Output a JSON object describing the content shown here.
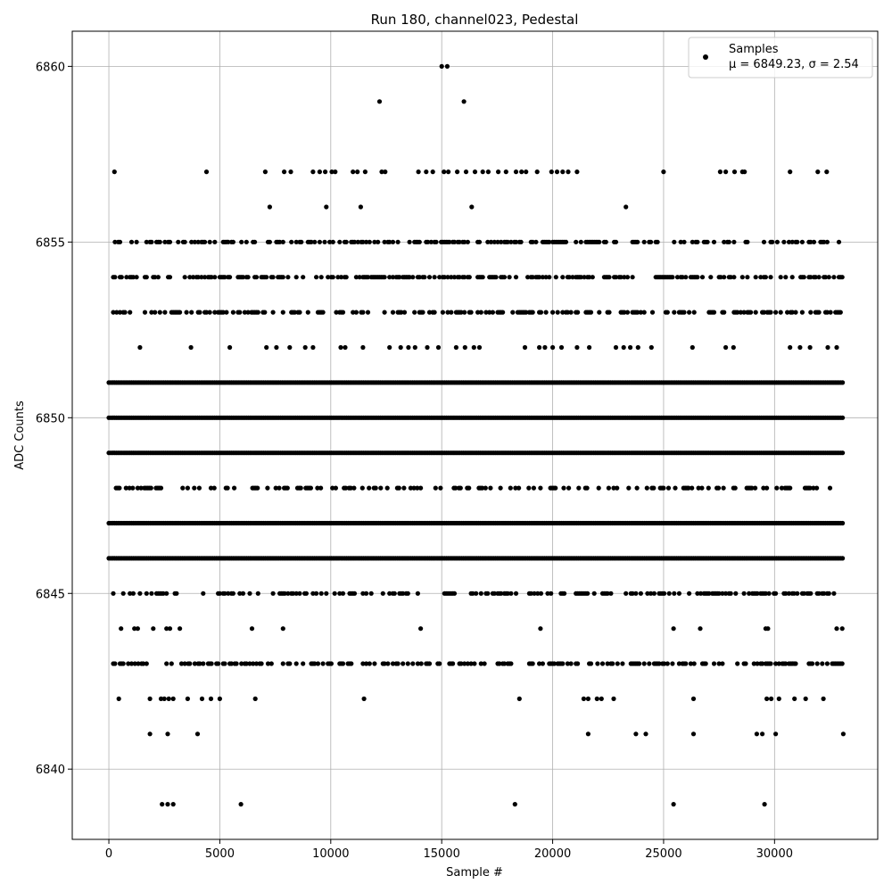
{
  "chart_data": {
    "type": "scatter",
    "title": "Run 180, channel023, Pedestal",
    "xlabel": "Sample #",
    "ylabel": "ADC Counts",
    "xlim": [
      -1650,
      34650
    ],
    "ylim": [
      6838,
      6861
    ],
    "x_ticks": [
      0,
      5000,
      10000,
      15000,
      20000,
      25000,
      30000
    ],
    "x_tick_labels": [
      "0",
      "5000",
      "10000",
      "15000",
      "20000",
      "25000",
      "30000"
    ],
    "y_ticks": [
      6840,
      6845,
      6850,
      6855,
      6860
    ],
    "y_tick_labels": [
      "6840",
      "6845",
      "6850",
      "6855",
      "6860"
    ],
    "grid": true,
    "legend": {
      "placement": "top-right",
      "entries": [
        "Samples",
        "μ = 6849.23, σ = 2.54"
      ]
    },
    "series": [
      {
        "name": "Samples",
        "color": "#000000",
        "marker": "circle",
        "x_range": [
          0,
          33100
        ],
        "dense_levels": [
          6851,
          6850,
          6849,
          6847,
          6846
        ],
        "medium_levels": [
          6855,
          6854,
          6853,
          6845,
          6843
        ],
        "sparse_levels": [
          6848
        ],
        "sparse_points": [
          [
            15000,
            6860
          ],
          [
            15250,
            6860
          ],
          [
            12200,
            6859
          ],
          [
            16000,
            6859
          ],
          [
            250,
            6857
          ],
          [
            4400,
            6857
          ],
          [
            7050,
            6857
          ],
          [
            7900,
            6857
          ],
          [
            8200,
            6857
          ],
          [
            9200,
            6857
          ],
          [
            9500,
            6857
          ],
          [
            9750,
            6857
          ],
          [
            10050,
            6857
          ],
          [
            10200,
            6857
          ],
          [
            11000,
            6857
          ],
          [
            11200,
            6857
          ],
          [
            11550,
            6857
          ],
          [
            12300,
            6857
          ],
          [
            12450,
            6857
          ],
          [
            13950,
            6857
          ],
          [
            14300,
            6857
          ],
          [
            14600,
            6857
          ],
          [
            15100,
            6857
          ],
          [
            15300,
            6857
          ],
          [
            15700,
            6857
          ],
          [
            16100,
            6857
          ],
          [
            16500,
            6857
          ],
          [
            16850,
            6857
          ],
          [
            17100,
            6857
          ],
          [
            17550,
            6857
          ],
          [
            17900,
            6857
          ],
          [
            18350,
            6857
          ],
          [
            18600,
            6857
          ],
          [
            18800,
            6857
          ],
          [
            19300,
            6857
          ],
          [
            19950,
            6857
          ],
          [
            20200,
            6857
          ],
          [
            20450,
            6857
          ],
          [
            20700,
            6857
          ],
          [
            21100,
            6857
          ],
          [
            25000,
            6857
          ],
          [
            27550,
            6857
          ],
          [
            27800,
            6857
          ],
          [
            28200,
            6857
          ],
          [
            28550,
            6857
          ],
          [
            28650,
            6857
          ],
          [
            30700,
            6857
          ],
          [
            31950,
            6857
          ],
          [
            32350,
            6857
          ],
          [
            7250,
            6856
          ],
          [
            9800,
            6856
          ],
          [
            11350,
            6856
          ],
          [
            16350,
            6856
          ],
          [
            23300,
            6856
          ],
          [
            1400,
            6852
          ],
          [
            3700,
            6852
          ],
          [
            5450,
            6852
          ],
          [
            7100,
            6852
          ],
          [
            7550,
            6852
          ],
          [
            8150,
            6852
          ],
          [
            8850,
            6852
          ],
          [
            9200,
            6852
          ],
          [
            10450,
            6852
          ],
          [
            10650,
            6852
          ],
          [
            11450,
            6852
          ],
          [
            12650,
            6852
          ],
          [
            13150,
            6852
          ],
          [
            13500,
            6852
          ],
          [
            13800,
            6852
          ],
          [
            14350,
            6852
          ],
          [
            14850,
            6852
          ],
          [
            15650,
            6852
          ],
          [
            16050,
            6852
          ],
          [
            16450,
            6852
          ],
          [
            16700,
            6852
          ],
          [
            18750,
            6852
          ],
          [
            19400,
            6852
          ],
          [
            19650,
            6852
          ],
          [
            20000,
            6852
          ],
          [
            20400,
            6852
          ],
          [
            21100,
            6852
          ],
          [
            21650,
            6852
          ],
          [
            22850,
            6852
          ],
          [
            23200,
            6852
          ],
          [
            23500,
            6852
          ],
          [
            23850,
            6852
          ],
          [
            24450,
            6852
          ],
          [
            26300,
            6852
          ],
          [
            27800,
            6852
          ],
          [
            28150,
            6852
          ],
          [
            30700,
            6852
          ],
          [
            31150,
            6852
          ],
          [
            31600,
            6852
          ],
          [
            32400,
            6852
          ],
          [
            32800,
            6852
          ],
          [
            550,
            6844
          ],
          [
            1150,
            6844
          ],
          [
            1300,
            6844
          ],
          [
            2000,
            6844
          ],
          [
            2600,
            6844
          ],
          [
            2750,
            6844
          ],
          [
            3200,
            6844
          ],
          [
            6450,
            6844
          ],
          [
            7850,
            6844
          ],
          [
            14050,
            6844
          ],
          [
            19450,
            6844
          ],
          [
            25450,
            6844
          ],
          [
            26650,
            6844
          ],
          [
            29600,
            6844
          ],
          [
            29700,
            6844
          ],
          [
            32800,
            6844
          ],
          [
            33050,
            6844
          ],
          [
            450,
            6842
          ],
          [
            1850,
            6842
          ],
          [
            2350,
            6842
          ],
          [
            2500,
            6842
          ],
          [
            2700,
            6842
          ],
          [
            2900,
            6842
          ],
          [
            3550,
            6842
          ],
          [
            4200,
            6842
          ],
          [
            4600,
            6842
          ],
          [
            5000,
            6842
          ],
          [
            6600,
            6842
          ],
          [
            11500,
            6842
          ],
          [
            18500,
            6842
          ],
          [
            21400,
            6842
          ],
          [
            21600,
            6842
          ],
          [
            22000,
            6842
          ],
          [
            22200,
            6842
          ],
          [
            22750,
            6842
          ],
          [
            26350,
            6842
          ],
          [
            29650,
            6842
          ],
          [
            29850,
            6842
          ],
          [
            30200,
            6842
          ],
          [
            30900,
            6842
          ],
          [
            31400,
            6842
          ],
          [
            32200,
            6842
          ],
          [
            1850,
            6841
          ],
          [
            2650,
            6841
          ],
          [
            4000,
            6841
          ],
          [
            21600,
            6841
          ],
          [
            23750,
            6841
          ],
          [
            24200,
            6841
          ],
          [
            26350,
            6841
          ],
          [
            29200,
            6841
          ],
          [
            29450,
            6841
          ],
          [
            30050,
            6841
          ],
          [
            33100,
            6841
          ],
          [
            2400,
            6839
          ],
          [
            2650,
            6839
          ],
          [
            2900,
            6839
          ],
          [
            5950,
            6839
          ],
          [
            18300,
            6839
          ],
          [
            25450,
            6839
          ],
          [
            29550,
            6839
          ]
        ]
      }
    ]
  }
}
